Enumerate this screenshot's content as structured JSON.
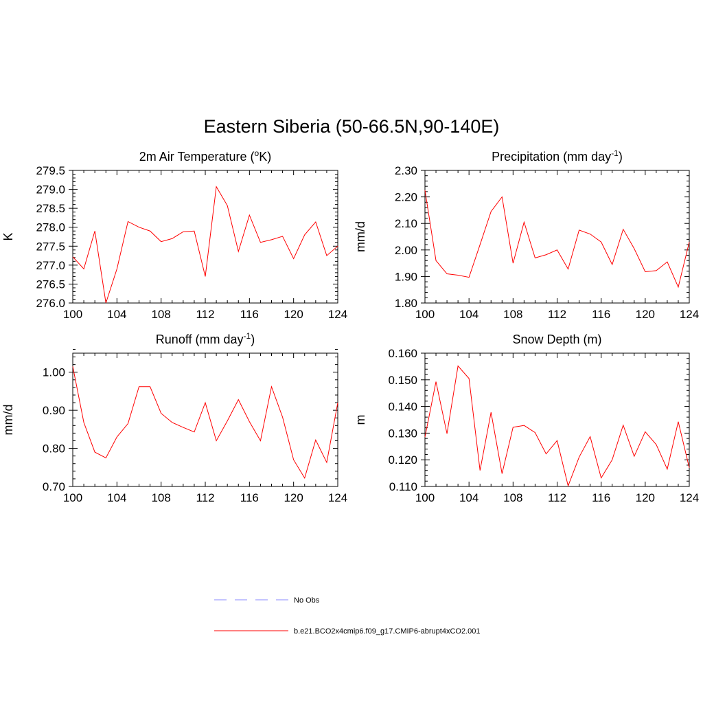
{
  "title": "Eastern Siberia (50-66.5N,90-140E)",
  "chart_data": [
    {
      "type": "line",
      "title_main": "2m Air Temperature (",
      "title_sup_lead": "o",
      "title_tail": "K)",
      "ylabel": "K",
      "xlim": [
        100,
        124
      ],
      "ylim": [
        276.0,
        279.5
      ],
      "xticks": [
        100,
        104,
        108,
        112,
        116,
        120,
        124
      ],
      "xtick_labels": [
        "100",
        "104",
        "108",
        "112",
        "116",
        "120",
        "124"
      ],
      "yticks": [
        276.0,
        276.5,
        277.0,
        277.5,
        278.0,
        278.5,
        279.0,
        279.5
      ],
      "ytick_labels": [
        "276.0",
        "276.5",
        "277.0",
        "277.5",
        "278.0",
        "278.5",
        "279.0",
        "279.5"
      ],
      "yminor": 0.1,
      "x": [
        100,
        101,
        102,
        103,
        104,
        105,
        106,
        107,
        108,
        109,
        110,
        111,
        112,
        113,
        114,
        115,
        116,
        117,
        118,
        119,
        120,
        121,
        122,
        123,
        124
      ],
      "series": [
        {
          "name": "b.e21.BCO2x4cmip6.f09_g17.CMIP6-abrupt4xCO2.001",
          "values": [
            277.22,
            276.9,
            277.9,
            276.0,
            276.9,
            278.15,
            278.0,
            277.9,
            277.62,
            277.7,
            277.88,
            277.9,
            276.7,
            279.07,
            278.57,
            277.36,
            278.32,
            277.6,
            277.67,
            277.76,
            277.17,
            277.8,
            278.14,
            277.25,
            277.5
          ]
        }
      ]
    },
    {
      "type": "line",
      "title_main": "Precipitation (mm day",
      "title_sup": "-1",
      "title_tail": ")",
      "ylabel": "mm/d",
      "xlim": [
        100,
        124
      ],
      "ylim": [
        1.8,
        2.3
      ],
      "xticks": [
        100,
        104,
        108,
        112,
        116,
        120,
        124
      ],
      "xtick_labels": [
        "100",
        "104",
        "108",
        "112",
        "116",
        "120",
        "124"
      ],
      "yticks": [
        1.8,
        1.9,
        2.0,
        2.1,
        2.2,
        2.3
      ],
      "ytick_labels": [
        "1.80",
        "1.90",
        "2.00",
        "2.10",
        "2.20",
        "2.30"
      ],
      "yminor": 0.02,
      "x": [
        100,
        101,
        102,
        103,
        104,
        105,
        106,
        107,
        108,
        109,
        110,
        111,
        112,
        113,
        114,
        115,
        116,
        117,
        118,
        119,
        120,
        121,
        122,
        123,
        124
      ],
      "series": [
        {
          "name": "b.e21.BCO2x4cmip6.f09_g17.CMIP6-abrupt4xCO2.001",
          "values": [
            2.225,
            1.96,
            1.91,
            1.905,
            1.897,
            2.02,
            2.145,
            2.2,
            1.95,
            2.105,
            1.97,
            1.982,
            2.0,
            1.928,
            2.075,
            2.06,
            2.03,
            1.945,
            2.078,
            2.005,
            1.918,
            1.922,
            1.955,
            1.86,
            2.03
          ]
        }
      ]
    },
    {
      "type": "line",
      "title_main": "Runoff (mm day",
      "title_sup": "-1",
      "title_tail": ")",
      "ylabel": "mm/d",
      "xlim": [
        100,
        124
      ],
      "ylim": [
        0.7,
        1.05
      ],
      "xticks": [
        100,
        104,
        108,
        112,
        116,
        120,
        124
      ],
      "xtick_labels": [
        "100",
        "104",
        "108",
        "112",
        "116",
        "120",
        "124"
      ],
      "yticks": [
        0.7,
        0.8,
        0.9,
        1.0
      ],
      "ytick_labels": [
        "0.70",
        "0.80",
        "0.90",
        "1.00"
      ],
      "yminor": 0.02,
      "x": [
        100,
        101,
        102,
        103,
        104,
        105,
        106,
        107,
        108,
        109,
        110,
        111,
        112,
        113,
        114,
        115,
        116,
        117,
        118,
        119,
        120,
        121,
        122,
        123,
        124
      ],
      "series": [
        {
          "name": "b.e21.BCO2x4cmip6.f09_g17.CMIP6-abrupt4xCO2.001",
          "values": [
            1.015,
            0.868,
            0.79,
            0.775,
            0.83,
            0.865,
            0.962,
            0.962,
            0.892,
            0.868,
            0.855,
            0.843,
            0.92,
            0.82,
            0.872,
            0.928,
            0.87,
            0.82,
            0.962,
            0.882,
            0.77,
            0.722,
            0.822,
            0.763,
            0.92
          ]
        }
      ]
    },
    {
      "type": "line",
      "title_main": "Snow Depth (m)",
      "ylabel": "m",
      "xlim": [
        100,
        124
      ],
      "ylim": [
        0.11,
        0.16
      ],
      "xticks": [
        100,
        104,
        108,
        112,
        116,
        120,
        124
      ],
      "xtick_labels": [
        "100",
        "104",
        "108",
        "112",
        "116",
        "120",
        "124"
      ],
      "yticks": [
        0.11,
        0.12,
        0.13,
        0.14,
        0.15,
        0.16
      ],
      "ytick_labels": [
        "0.110",
        "0.120",
        "0.130",
        "0.140",
        "0.150",
        "0.160"
      ],
      "yminor": 0.002,
      "x": [
        100,
        101,
        102,
        103,
        104,
        105,
        106,
        107,
        108,
        109,
        110,
        111,
        112,
        113,
        114,
        115,
        116,
        117,
        118,
        119,
        120,
        121,
        122,
        123,
        124
      ],
      "series": [
        {
          "name": "b.e21.BCO2x4cmip6.f09_g17.CMIP6-abrupt4xCO2.001",
          "values": [
            0.1285,
            0.1493,
            0.1298,
            0.1552,
            0.1505,
            0.116,
            0.1378,
            0.1148,
            0.1322,
            0.1329,
            0.1302,
            0.1222,
            0.1272,
            0.1102,
            0.121,
            0.1287,
            0.1132,
            0.12,
            0.133,
            0.1213,
            0.1305,
            0.1257,
            0.1165,
            0.1343,
            0.117
          ]
        }
      ]
    }
  ],
  "legend": {
    "placement": "bottom-center",
    "items": [
      {
        "label": "No Obs",
        "color": "#8888ff",
        "style": "dashed"
      },
      {
        "label": "b.e21.BCO2x4cmip6.f09_g17.CMIP6-abrupt4xCO2.001",
        "color": "#ff0000",
        "style": "solid"
      }
    ]
  },
  "colors": {
    "series": "#ff0000",
    "obs": "#8888ff"
  }
}
